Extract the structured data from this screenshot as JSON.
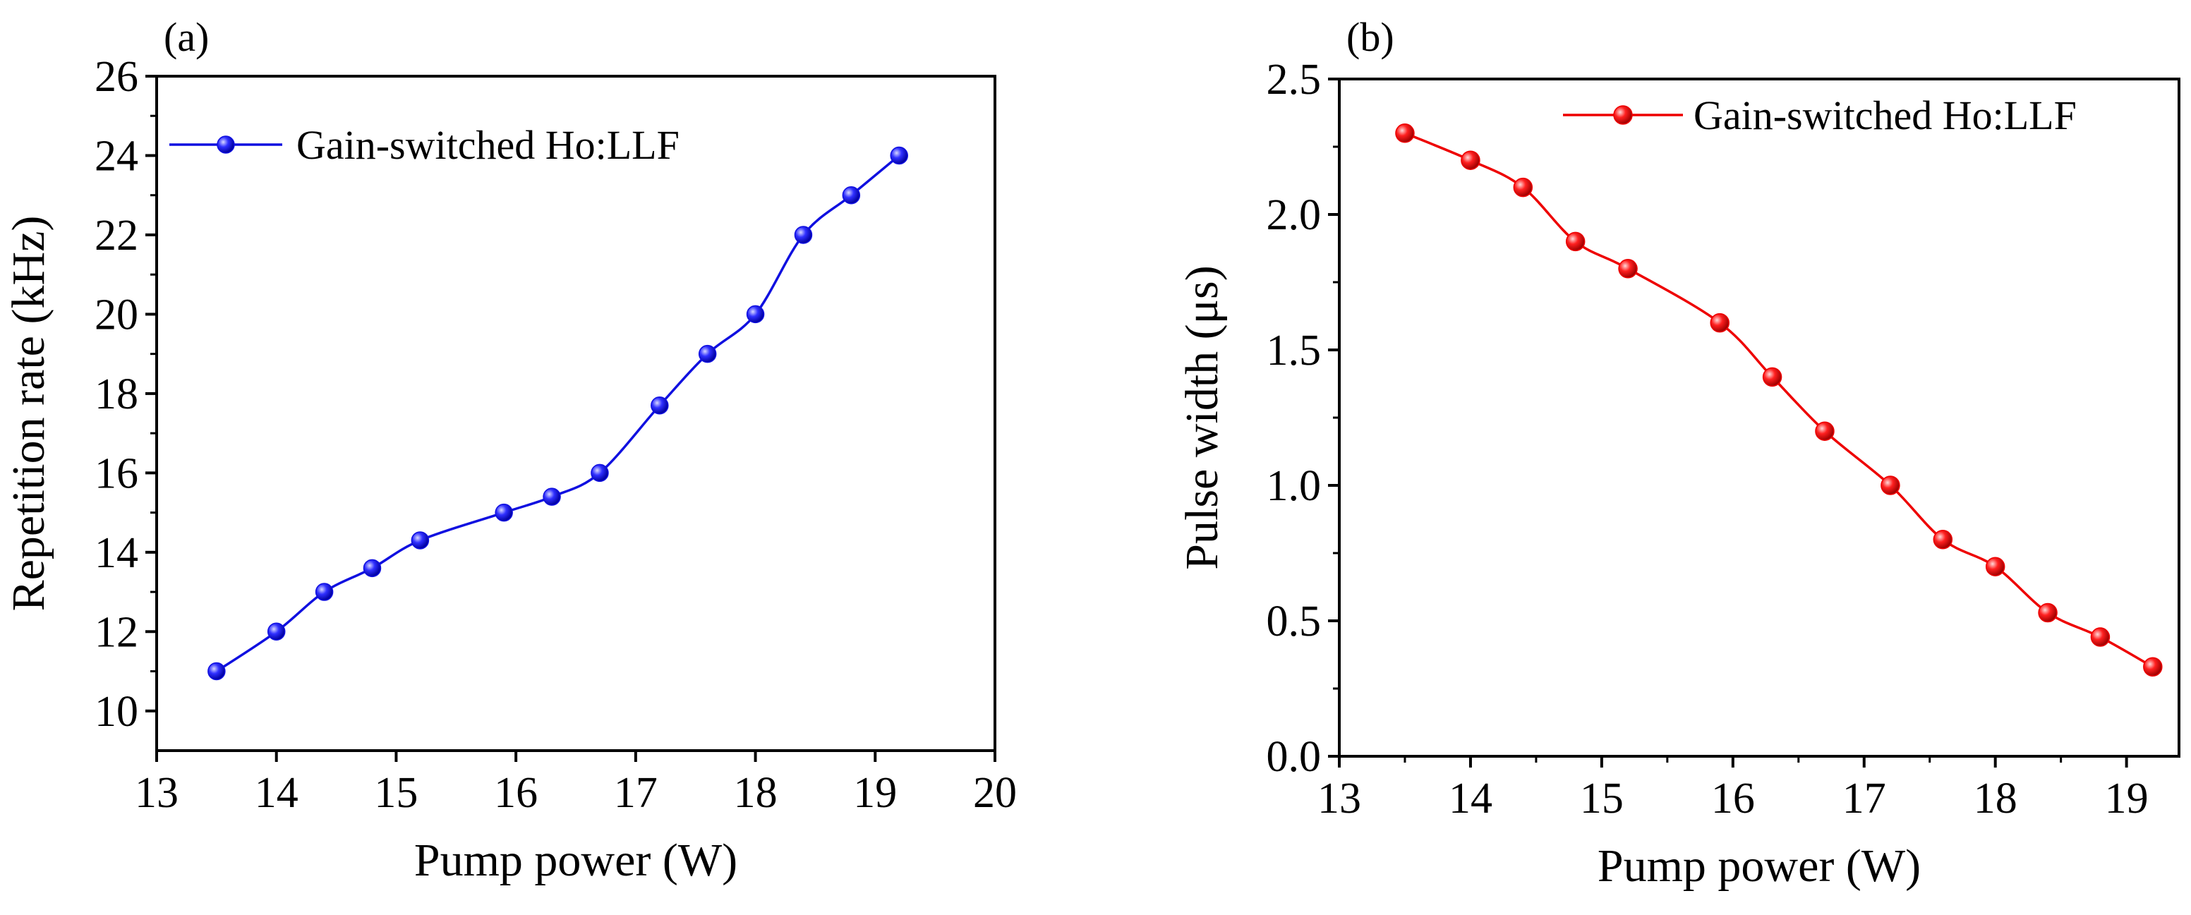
{
  "chart_data": [
    {
      "type": "line",
      "panel_label": "(a)",
      "title": "",
      "xlabel": "Pump power (W)",
      "ylabel": "Repetition rate (kHz)",
      "xlim": [
        13,
        20
      ],
      "ylim": [
        9,
        26
      ],
      "xticks": [
        13,
        14,
        15,
        16,
        17,
        18,
        19,
        20
      ],
      "yticks": [
        10,
        12,
        14,
        16,
        18,
        20,
        22,
        24,
        26
      ],
      "legend_position": "top-left",
      "series": [
        {
          "name": "Gain-switched Ho:LLF",
          "color": "#1010e0",
          "x": [
            13.5,
            14.0,
            14.4,
            14.8,
            15.2,
            15.9,
            16.3,
            16.7,
            17.2,
            17.6,
            18.0,
            18.4,
            18.8,
            19.2
          ],
          "y": [
            11.0,
            12.0,
            13.0,
            13.6,
            14.3,
            15.0,
            15.4,
            16.0,
            17.7,
            19.0,
            20.0,
            22.0,
            23.0,
            24.0
          ]
        }
      ]
    },
    {
      "type": "line",
      "panel_label": "(b)",
      "title": "",
      "xlabel": "Pump power (W)",
      "ylabel": "Pulse width (μs)",
      "xlim": [
        13,
        19.4
      ],
      "ylim": [
        0,
        2.5
      ],
      "xticks": [
        13,
        14,
        15,
        16,
        17,
        18,
        19
      ],
      "yticks": [
        0.0,
        0.5,
        1.0,
        1.5,
        2.0,
        2.5
      ],
      "legend_position": "top-right",
      "series": [
        {
          "name": "Gain-switched Ho:LLF",
          "color": "#ee0000",
          "x": [
            13.5,
            14.0,
            14.4,
            14.8,
            15.2,
            15.9,
            16.3,
            16.7,
            17.2,
            17.6,
            18.0,
            18.4,
            18.8,
            19.2
          ],
          "y": [
            2.3,
            2.2,
            2.1,
            1.9,
            1.8,
            1.6,
            1.4,
            1.2,
            1.0,
            0.8,
            0.7,
            0.53,
            0.44,
            0.33
          ]
        }
      ]
    }
  ]
}
